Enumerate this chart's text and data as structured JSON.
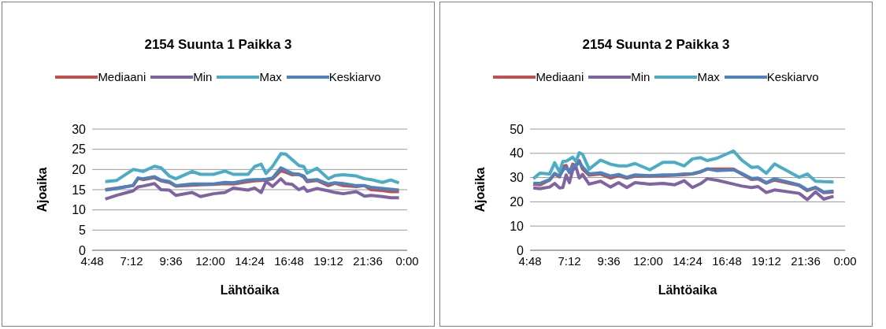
{
  "chart_data": [
    {
      "type": "line",
      "title": "2154 Suunta 1 Paikka 3",
      "xlabel": "Lähtöaika",
      "ylabel": "Ajoaika",
      "legend": "top",
      "grid": "y",
      "xlim": [
        4.8,
        24
      ],
      "xticks": [
        {
          "value": 4.8,
          "label": "4:48"
        },
        {
          "value": 7.2,
          "label": "7:12"
        },
        {
          "value": 9.6,
          "label": "9:36"
        },
        {
          "value": 12,
          "label": "12:00"
        },
        {
          "value": 14.4,
          "label": "14:24"
        },
        {
          "value": 16.8,
          "label": "16:48"
        },
        {
          "value": 19.2,
          "label": "19:12"
        },
        {
          "value": 21.6,
          "label": "21:36"
        },
        {
          "value": 24,
          "label": "0:00"
        }
      ],
      "ylim": [
        0,
        30
      ],
      "yticks": [
        0,
        5,
        10,
        15,
        20,
        25,
        30
      ],
      "x": [
        5.6,
        6.3,
        7.3,
        7.6,
        7.9,
        8.6,
        9.0,
        9.5,
        9.9,
        10.9,
        11.4,
        12.2,
        12.9,
        13.4,
        14.3,
        14.7,
        15.1,
        15.4,
        15.8,
        16.3,
        16.6,
        17.0,
        17.4,
        17.7,
        17.9,
        18.5,
        19.2,
        19.6,
        20.1,
        20.9,
        21.4,
        21.8,
        22.5,
        23.0,
        23.5
      ],
      "series": [
        {
          "name": "Mediaani",
          "color": "#c0504d",
          "values": [
            15.0,
            15.4,
            16.0,
            17.8,
            17.5,
            18.0,
            17.2,
            16.8,
            15.9,
            16.1,
            16.2,
            16.3,
            16.5,
            16.4,
            17.0,
            17.2,
            17.3,
            17.4,
            17.7,
            19.7,
            19.3,
            18.7,
            18.8,
            18.1,
            17.0,
            17.3,
            16.0,
            16.6,
            16.0,
            15.8,
            16.0,
            15.0,
            14.8,
            14.5,
            14.5
          ]
        },
        {
          "name": "Min",
          "color": "#8064a2",
          "values": [
            12.7,
            13.6,
            14.7,
            15.7,
            15.9,
            16.5,
            15.0,
            14.9,
            13.6,
            14.3,
            13.3,
            14.0,
            14.3,
            15.4,
            14.9,
            15.4,
            14.3,
            17.0,
            15.8,
            17.7,
            16.5,
            16.3,
            15.0,
            15.6,
            14.6,
            15.3,
            14.7,
            14.3,
            14.0,
            14.5,
            13.4,
            13.6,
            13.3,
            13.0,
            13.0
          ]
        },
        {
          "name": "Max",
          "color": "#4bacc6",
          "values": [
            17.0,
            17.3,
            20.0,
            19.8,
            19.5,
            20.8,
            20.4,
            18.4,
            17.7,
            19.5,
            18.8,
            18.8,
            19.6,
            18.8,
            18.8,
            20.7,
            21.3,
            19.0,
            20.8,
            23.9,
            23.8,
            22.4,
            21.0,
            20.7,
            19.1,
            20.3,
            17.7,
            18.5,
            18.7,
            18.4,
            17.7,
            17.5,
            16.8,
            17.4,
            16.7
          ]
        },
        {
          "name": "Keskiarvo",
          "color": "#4f81bd",
          "values": [
            14.9,
            15.3,
            16.1,
            17.9,
            17.7,
            18.2,
            17.4,
            17.0,
            16.0,
            16.4,
            16.4,
            16.4,
            16.8,
            16.7,
            17.4,
            17.5,
            17.5,
            17.6,
            17.9,
            20.4,
            19.8,
            19.0,
            18.8,
            18.4,
            17.3,
            17.5,
            16.4,
            16.7,
            16.5,
            16.0,
            16.0,
            15.6,
            15.3,
            15.1,
            14.9
          ]
        }
      ]
    },
    {
      "type": "line",
      "title": "2154 Suunta 2 Paikka 3",
      "xlabel": "Lähtöaika",
      "ylabel": "Ajoaika",
      "legend": "top",
      "grid": "y",
      "xlim": [
        4.8,
        24
      ],
      "xticks": [
        {
          "value": 4.8,
          "label": "4:48"
        },
        {
          "value": 7.2,
          "label": "7:12"
        },
        {
          "value": 9.6,
          "label": "9:36"
        },
        {
          "value": 12,
          "label": "12:00"
        },
        {
          "value": 14.4,
          "label": "14:24"
        },
        {
          "value": 16.8,
          "label": "16:48"
        },
        {
          "value": 19.2,
          "label": "19:12"
        },
        {
          "value": 21.6,
          "label": "21:36"
        },
        {
          "value": 24,
          "label": "0:00"
        }
      ],
      "ylim": [
        0,
        50
      ],
      "yticks": [
        0,
        10,
        20,
        30,
        40,
        50
      ],
      "x": [
        5.0,
        5.4,
        6.0,
        6.3,
        6.6,
        6.8,
        7.0,
        7.2,
        7.4,
        7.6,
        7.8,
        8.0,
        8.4,
        9.1,
        9.7,
        10.2,
        10.7,
        11.2,
        12.1,
        12.9,
        13.6,
        14.2,
        14.7,
        15.2,
        15.6,
        16.2,
        17.2,
        17.7,
        18.3,
        18.7,
        19.2,
        19.7,
        21.2,
        21.7,
        22.2,
        22.7,
        23.3
      ],
      "series": [
        {
          "name": "Mediaani",
          "color": "#c0504d",
          "values": [
            27.3,
            27.0,
            29.0,
            31.5,
            30.3,
            34.5,
            35.0,
            32.0,
            35.5,
            35.0,
            37.0,
            33.5,
            31.0,
            31.5,
            29.8,
            30.8,
            29.8,
            30.6,
            30.6,
            30.8,
            31.0,
            31.2,
            31.5,
            32.3,
            33.5,
            33.5,
            33.5,
            31.5,
            29.2,
            29.5,
            27.7,
            29.0,
            26.8,
            24.6,
            25.8,
            23.8,
            24.0
          ]
        },
        {
          "name": "Min",
          "color": "#8064a2",
          "values": [
            25.7,
            25.4,
            26.1,
            27.6,
            25.7,
            25.9,
            31.1,
            27.9,
            33.0,
            34.4,
            29.8,
            31.3,
            27.3,
            28.5,
            26.1,
            27.9,
            25.9,
            27.9,
            27.3,
            27.6,
            27.0,
            28.7,
            25.9,
            27.5,
            29.5,
            28.9,
            27.3,
            26.5,
            25.9,
            26.3,
            23.8,
            24.9,
            23.5,
            20.9,
            24.1,
            21.1,
            22.3
          ]
        },
        {
          "name": "Max",
          "color": "#4bacc6",
          "values": [
            29.5,
            31.8,
            31.5,
            36.1,
            32.3,
            36.7,
            36.8,
            37.5,
            38.4,
            36.7,
            40.2,
            39.6,
            33.5,
            37.2,
            35.5,
            34.8,
            34.8,
            35.8,
            33.2,
            36.3,
            36.3,
            34.8,
            37.7,
            38.2,
            37.0,
            38.0,
            41.0,
            37.2,
            34.2,
            34.4,
            31.8,
            35.6,
            30.1,
            31.5,
            28.5,
            28.3,
            28.2
          ]
        },
        {
          "name": "Keskiarvo",
          "color": "#4f81bd",
          "values": [
            27.7,
            27.6,
            29.2,
            31.7,
            30.6,
            33.0,
            34.2,
            32.3,
            34.8,
            34.8,
            36.5,
            34.4,
            31.5,
            32.0,
            30.6,
            31.3,
            30.1,
            31.1,
            30.8,
            31.1,
            31.1,
            31.5,
            31.6,
            32.5,
            33.6,
            32.9,
            33.2,
            31.7,
            29.6,
            29.8,
            27.9,
            29.5,
            27.0,
            24.9,
            26.0,
            24.0,
            24.4
          ]
        }
      ]
    }
  ]
}
